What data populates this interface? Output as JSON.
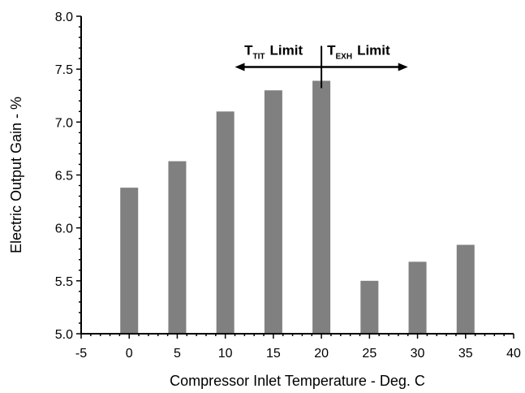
{
  "chart_data": {
    "type": "bar",
    "x": [
      0,
      5,
      10,
      15,
      20,
      25,
      30,
      35
    ],
    "values": [
      6.38,
      6.63,
      7.1,
      7.3,
      7.39,
      5.5,
      5.68,
      5.84
    ],
    "xlabel": "Compressor Inlet Temperature - Deg. C",
    "ylabel": "Electric Output Gain - %",
    "xlim": [
      -5,
      40
    ],
    "ylim": [
      5.0,
      8.0
    ],
    "x_ticks": [
      "-5",
      "0",
      "5",
      "10",
      "15",
      "20",
      "25",
      "30",
      "35",
      "40"
    ],
    "y_ticks": [
      "5.0",
      "5.5",
      "6.0",
      "6.5",
      "7.0",
      "7.5",
      "8.0"
    ],
    "bar_color": "#808080",
    "grid": false,
    "annotations": {
      "divider_x": 20,
      "arrow_y": 7.52,
      "arrow_x_range": [
        11,
        29
      ],
      "left": {
        "main": "T",
        "sub": "TIT",
        "rest": "Limit"
      },
      "right": {
        "main": "T",
        "sub": "EXH",
        "rest": "Limit"
      }
    }
  }
}
